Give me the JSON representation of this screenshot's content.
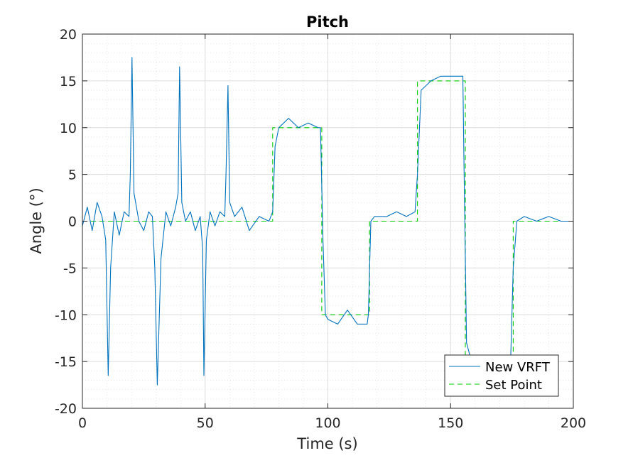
{
  "chart_data": {
    "type": "line",
    "title": "Pitch",
    "xlabel": "Time (s)",
    "ylabel": "Angle (°)",
    "xlim": [
      0,
      200
    ],
    "ylim": [
      -20,
      20
    ],
    "xticks": [
      "0",
      "50",
      "100",
      "150",
      "200"
    ],
    "yticks": [
      "-20",
      "-15",
      "-10",
      "-5",
      "0",
      "5",
      "10",
      "15",
      "20"
    ],
    "grid": true,
    "minor_grid": true,
    "legend_position": "bottom-right",
    "series": [
      {
        "name": "New VRFT",
        "color": "#0072BD",
        "style": "solid",
        "x": [
          0,
          2,
          4,
          6,
          8,
          9.5,
          10.5,
          11.5,
          13,
          15,
          17,
          19,
          19.5,
          20.2,
          21,
          23,
          25,
          27,
          28.5,
          29.5,
          30.5,
          32,
          34,
          36,
          38,
          39,
          39.6,
          40.5,
          42,
          44,
          46,
          48,
          49,
          49.5,
          50.5,
          52,
          54,
          56,
          58,
          58.5,
          59.3,
          60,
          62,
          65,
          68,
          72,
          76,
          77.5,
          78.5,
          80,
          84,
          88,
          92,
          96,
          97,
          98,
          99,
          100,
          104,
          108,
          112,
          116,
          116.5,
          117.5,
          119,
          124,
          128,
          132,
          135.5,
          136.5,
          138,
          142,
          146,
          150,
          155,
          155.5,
          156.5,
          158,
          162,
          166,
          170,
          174.5,
          175.5,
          177,
          180,
          185,
          190,
          195,
          200
        ],
        "y": [
          -0.5,
          1.5,
          -1,
          2,
          0.5,
          -2,
          -16.5,
          -5,
          1,
          -1.5,
          1,
          0.5,
          5,
          17.5,
          3,
          0,
          -1,
          1,
          0.5,
          -5,
          -17.5,
          -4,
          1,
          -0.5,
          1.5,
          3,
          16.5,
          2,
          0,
          1,
          -1,
          0.5,
          -3,
          -16.5,
          -2,
          1,
          -0.5,
          1,
          0.5,
          5,
          14.5,
          2,
          0.5,
          1.5,
          -1,
          0.5,
          0,
          1,
          8,
          10,
          11,
          10,
          10.5,
          10,
          10,
          -2,
          -10,
          -10.5,
          -11,
          -9.5,
          -11,
          -11,
          -10,
          0,
          0.5,
          0.5,
          1,
          0.5,
          1,
          5,
          14,
          15,
          15.5,
          15.5,
          15.5,
          5,
          -13,
          -14.5,
          -14.5,
          -14.5,
          -14.5,
          -14.5,
          -5,
          0,
          0.5,
          0,
          0.5,
          0,
          0
        ]
      },
      {
        "name": "Set Point",
        "color": "#00CC00",
        "style": "dashed",
        "x": [
          0,
          77.5,
          77.5,
          97.5,
          97.5,
          117,
          117,
          136.5,
          136.5,
          156,
          156,
          175.5,
          175.5,
          200
        ],
        "y": [
          0,
          0,
          10,
          10,
          -10,
          -10,
          0,
          0,
          15,
          15,
          -15,
          -15,
          0,
          0
        ]
      }
    ]
  }
}
